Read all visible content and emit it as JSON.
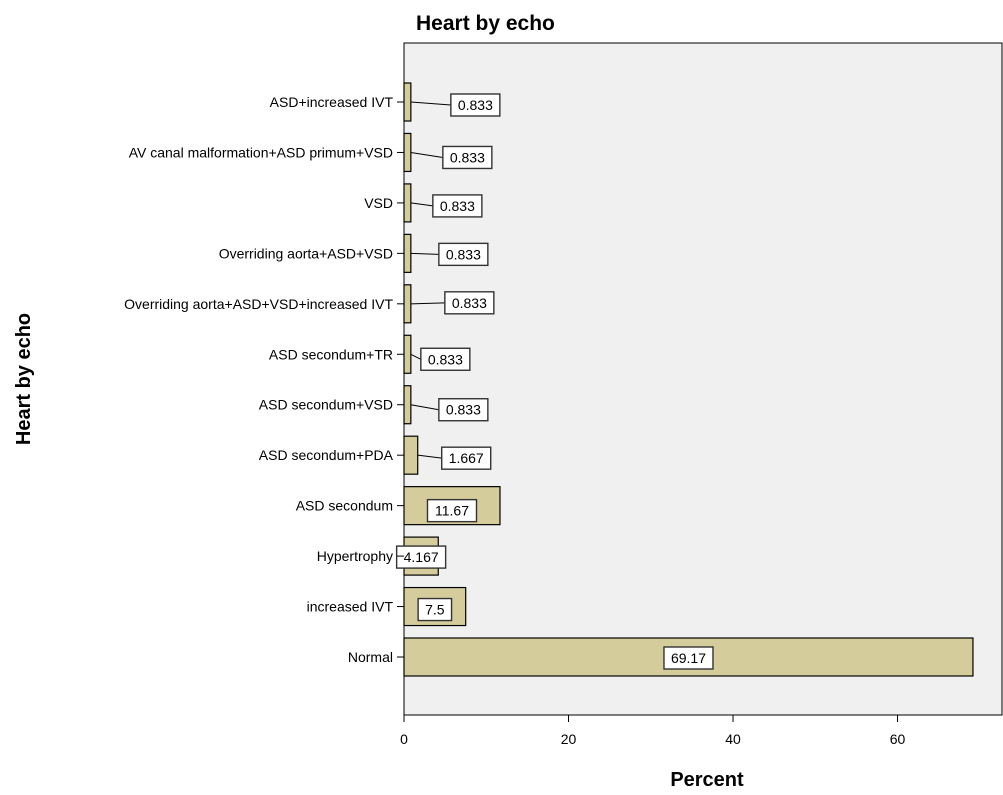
{
  "chart_data": {
    "type": "bar",
    "orientation": "horizontal",
    "title": "Heart by echo",
    "xlabel": "Percent",
    "ylabel": "Heart by echo",
    "categories": [
      "ASD+increased IVT",
      "AV canal malformation+ASD primum+VSD",
      "VSD",
      "Overriding aorta+ASD+VSD",
      "Overriding aorta+ASD+VSD+increased IVT",
      "ASD secondum+TR",
      "ASD secondum+VSD",
      "ASD secondum+PDA",
      "ASD secondum",
      "Hypertrophy",
      "increased IVT",
      "Normal"
    ],
    "values": [
      0.833,
      0.833,
      0.833,
      0.833,
      0.833,
      0.833,
      0.833,
      1.667,
      11.67,
      4.167,
      7.5,
      69.17
    ],
    "value_labels": [
      "0.833",
      "0.833",
      "0.833",
      "0.833",
      "0.833",
      "0.833",
      "0.833",
      "1.667",
      "11.67",
      "4.167",
      "7.5",
      "69.17"
    ],
    "x_ticks": [
      "0",
      "20",
      "40",
      "60"
    ],
    "xlim": [
      0,
      72.7
    ],
    "grid": false,
    "colors": {
      "bar_fill": "#d5cc9c",
      "bar_stroke": "#000000",
      "plot_background": "#f0f0f0"
    }
  }
}
